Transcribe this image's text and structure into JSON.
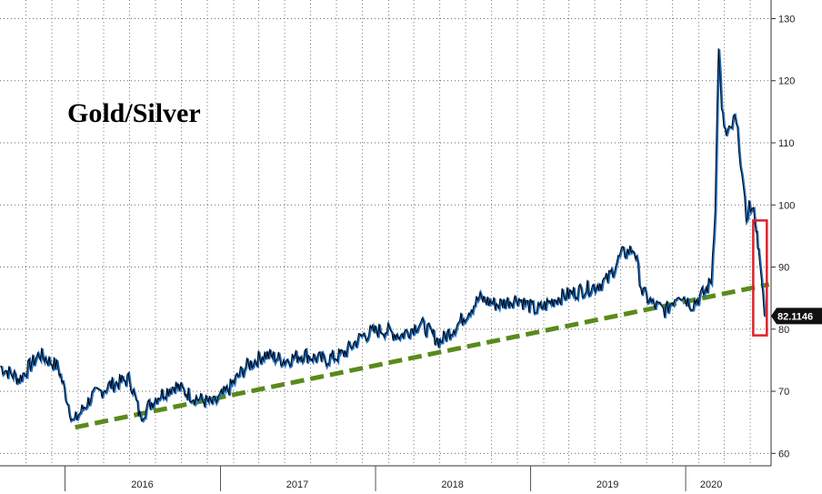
{
  "chart_data": {
    "type": "line",
    "title": "Gold/Silver",
    "xlabel": "",
    "ylabel": "",
    "ylim": [
      58,
      133
    ],
    "y_ticks": [
      60,
      70,
      80,
      90,
      100,
      110,
      120,
      130
    ],
    "x_range": [
      "2015-08-01",
      "2020-05-15"
    ],
    "x_tick_labels": [
      {
        "label": "2016",
        "date": "2016-07-01"
      },
      {
        "label": "2017",
        "date": "2017-07-01"
      },
      {
        "label": "2018",
        "date": "2018-07-01"
      },
      {
        "label": "2019",
        "date": "2019-07-01"
      },
      {
        "label": "2020",
        "date": "2020-03-01"
      }
    ],
    "year_boundaries": [
      "2016-01-01",
      "2017-01-01",
      "2018-01-01",
      "2019-01-01",
      "2020-01-01"
    ],
    "grid": true,
    "last_value_label": "82.1146",
    "colors": {
      "line": "#000000",
      "line_shadow": "#1f6fc4",
      "trendline": "#5a8a1c",
      "highlight_box": "#e0202a",
      "callout_bg": "#111111"
    },
    "series": [
      {
        "x": [
          "2015-08-01",
          "2015-09-15",
          "2015-11-01",
          "2015-12-15",
          "2016-01-20",
          "2016-03-01",
          "2016-04-15",
          "2016-06-01",
          "2016-06-25",
          "2016-08-01",
          "2016-09-15",
          "2016-11-01",
          "2016-12-15",
          "2017-01-15",
          "2017-03-01",
          "2017-04-15",
          "2017-06-01",
          "2017-07-15",
          "2017-09-01",
          "2017-10-15",
          "2017-12-01",
          "2018-01-15",
          "2018-03-01",
          "2018-04-15",
          "2018-06-01",
          "2018-07-15",
          "2018-09-01",
          "2018-10-15",
          "2018-12-01",
          "2019-01-15",
          "2019-03-01",
          "2019-04-15",
          "2019-06-01",
          "2019-07-01",
          "2019-08-01",
          "2019-09-01",
          "2019-09-20",
          "2019-10-15",
          "2019-11-15",
          "2019-12-15",
          "2020-01-15",
          "2020-02-15",
          "2020-03-01",
          "2020-03-10",
          "2020-03-18",
          "2020-03-25",
          "2020-04-05",
          "2020-04-15",
          "2020-04-25",
          "2020-05-05",
          "2020-05-15",
          "2020-05-22",
          "2020-05-29",
          "2020-06-05",
          "2020-06-12",
          "2020-06-16",
          "2020-06-20",
          "2020-06-24",
          "2020-06-30",
          "2020-07-04"
        ],
        "y": [
          74,
          72,
          76,
          74,
          65,
          69,
          71,
          72,
          66,
          69,
          71,
          69,
          68,
          70,
          74,
          76,
          75,
          76,
          75,
          76,
          79,
          80,
          79,
          81,
          78,
          81,
          85,
          84,
          85,
          83,
          85,
          86,
          87,
          88,
          92,
          93,
          86,
          84,
          83,
          86,
          84,
          86,
          88,
          100,
          126,
          115,
          111,
          112,
          114,
          110,
          102,
          98,
          100,
          99,
          98,
          95,
          93,
          90,
          86,
          82.1146
        ]
      }
    ],
    "trendline": {
      "x": [
        "2016-01-25",
        "2020-07-15"
      ],
      "y": [
        64.2,
        87.2
      ]
    },
    "highlight": {
      "x_start": "2020-06-08",
      "x_end": "2020-07-10",
      "y_low": 79,
      "y_high": 97.5
    }
  }
}
